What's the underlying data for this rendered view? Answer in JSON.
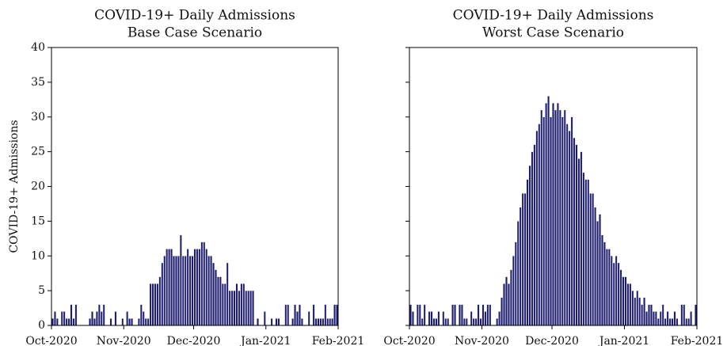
{
  "chart_data": [
    {
      "type": "bar",
      "title": "COVID-19+ Daily Admissions",
      "subtitle": "Base Case Scenario",
      "y_label": "COVID-19+ Admissions",
      "color": "#1c1c6e",
      "x": [
        0,
        1,
        2,
        3,
        4,
        5,
        6,
        7,
        8,
        9,
        10,
        11,
        12,
        13,
        14,
        15,
        16,
        17,
        18,
        19,
        20,
        21,
        22,
        23,
        24,
        25,
        26,
        27,
        28,
        29,
        30,
        31,
        32,
        33,
        34,
        35,
        36,
        37,
        38,
        39,
        40,
        41,
        42,
        43,
        44,
        45,
        46,
        47,
        48,
        49,
        50,
        51,
        52,
        53,
        54,
        55,
        56,
        57,
        58,
        59,
        60,
        61,
        62,
        63,
        64,
        65,
        66,
        67,
        68,
        69,
        70,
        71,
        72,
        73,
        74,
        75,
        76,
        77,
        78,
        79,
        80,
        81,
        82,
        83,
        84,
        85,
        86,
        87,
        88,
        89,
        90,
        91,
        92,
        93,
        94,
        95,
        96,
        97,
        98,
        99,
        100,
        101,
        102,
        103,
        104,
        105,
        106,
        107,
        108,
        109,
        110,
        111,
        112,
        113,
        114,
        115,
        116,
        117,
        118,
        119,
        120,
        121,
        122
      ],
      "values": [
        1,
        2,
        1,
        0,
        2,
        2,
        1,
        1,
        3,
        1,
        3,
        0,
        0,
        0,
        0,
        0,
        1,
        2,
        1,
        2,
        3,
        2,
        3,
        0,
        0,
        1,
        0,
        2,
        0,
        0,
        1,
        0,
        2,
        1,
        1,
        0,
        0,
        1,
        3,
        2,
        1,
        1,
        6,
        6,
        6,
        6,
        7,
        9,
        10,
        11,
        11,
        11,
        10,
        10,
        10,
        13,
        10,
        10,
        11,
        10,
        10,
        11,
        11,
        11,
        12,
        12,
        11,
        10,
        10,
        9,
        8,
        7,
        7,
        6,
        6,
        9,
        5,
        5,
        5,
        6,
        5,
        6,
        6,
        5,
        5,
        5,
        5,
        0,
        1,
        0,
        0,
        2,
        0,
        0,
        1,
        0,
        1,
        1,
        0,
        0,
        3,
        3,
        0,
        1,
        3,
        2,
        3,
        1,
        0,
        0,
        2,
        0,
        3,
        1,
        1,
        1,
        1,
        3,
        1,
        1,
        1,
        3,
        3
      ],
      "xlim": [
        0,
        123
      ],
      "xticks": [
        {
          "value": 0,
          "label": "Oct-2020"
        },
        {
          "value": 31,
          "label": "Nov-2020"
        },
        {
          "value": 61,
          "label": "Dec-2020"
        },
        {
          "value": 92,
          "label": "Jan-2021"
        },
        {
          "value": 123,
          "label": "Feb-2021"
        }
      ],
      "ylim": [
        0,
        40
      ],
      "yticks": [
        0,
        5,
        10,
        15,
        20,
        25,
        30,
        35,
        40
      ],
      "ytick_labels": true
    },
    {
      "type": "bar",
      "title": "COVID-19+ Daily Admissions",
      "subtitle": "Worst Case Scenario",
      "color": "#1c1c6e",
      "x": [
        0,
        1,
        2,
        3,
        4,
        5,
        6,
        7,
        8,
        9,
        10,
        11,
        12,
        13,
        14,
        15,
        16,
        17,
        18,
        19,
        20,
        21,
        22,
        23,
        24,
        25,
        26,
        27,
        28,
        29,
        30,
        31,
        32,
        33,
        34,
        35,
        36,
        37,
        38,
        39,
        40,
        41,
        42,
        43,
        44,
        45,
        46,
        47,
        48,
        49,
        50,
        51,
        52,
        53,
        54,
        55,
        56,
        57,
        58,
        59,
        60,
        61,
        62,
        63,
        64,
        65,
        66,
        67,
        68,
        69,
        70,
        71,
        72,
        73,
        74,
        75,
        76,
        77,
        78,
        79,
        80,
        81,
        82,
        83,
        84,
        85,
        86,
        87,
        88,
        89,
        90,
        91,
        92,
        93,
        94,
        95,
        96,
        97,
        98,
        99,
        100,
        101,
        102,
        103,
        104,
        105,
        106,
        107,
        108,
        109,
        110,
        111,
        112,
        113,
        114,
        115,
        116,
        117,
        118,
        119,
        120,
        121,
        122
      ],
      "values": [
        3,
        2,
        0,
        3,
        3,
        1,
        3,
        0,
        2,
        2,
        1,
        1,
        2,
        0,
        2,
        1,
        1,
        0,
        3,
        3,
        0,
        3,
        3,
        1,
        1,
        0,
        2,
        1,
        1,
        3,
        1,
        3,
        2,
        3,
        3,
        0,
        0,
        1,
        2,
        4,
        6,
        7,
        6,
        8,
        10,
        12,
        15,
        17,
        19,
        19,
        21,
        23,
        25,
        26,
        28,
        29,
        31,
        30,
        32,
        33,
        30,
        32,
        31,
        32,
        31,
        30,
        31,
        29,
        28,
        30,
        27,
        26,
        24,
        25,
        22,
        21,
        21,
        19,
        19,
        17,
        15,
        16,
        13,
        12,
        11,
        11,
        10,
        9,
        10,
        9,
        8,
        7,
        7,
        6,
        6,
        5,
        4,
        5,
        4,
        3,
        4,
        2,
        3,
        3,
        2,
        2,
        1,
        2,
        3,
        1,
        2,
        1,
        1,
        2,
        1,
        0,
        3,
        3,
        1,
        1,
        2,
        0,
        3
      ],
      "xlim": [
        0,
        123
      ],
      "xticks": [
        {
          "value": 0,
          "label": "Oct-2020"
        },
        {
          "value": 31,
          "label": "Nov-2020"
        },
        {
          "value": 61,
          "label": "Dec-2020"
        },
        {
          "value": 92,
          "label": "Jan-2021"
        },
        {
          "value": 123,
          "label": "Feb-2021"
        }
      ],
      "ylim": [
        0,
        40
      ],
      "yticks": [
        0,
        5,
        10,
        15,
        20,
        25,
        30,
        35,
        40
      ],
      "ytick_labels": false
    }
  ]
}
